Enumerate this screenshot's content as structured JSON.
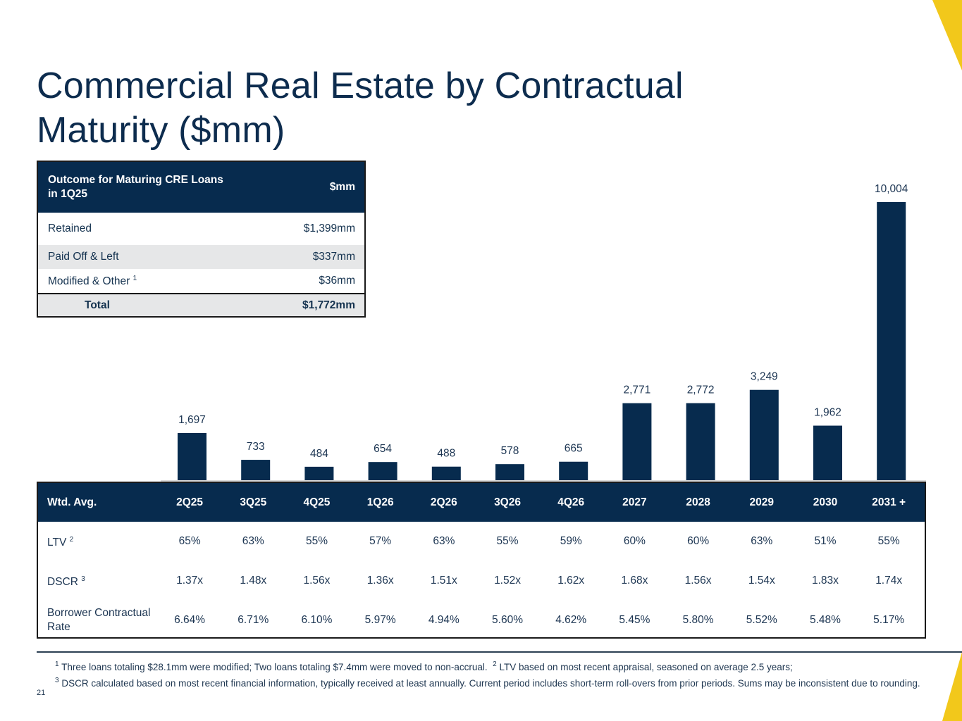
{
  "title": "Commercial Real Estate by Contractual Maturity ($mm)",
  "colors": {
    "navy": "#072b4e",
    "accent_yellow": "#f2c81b",
    "row_shade": "#e6e7e8"
  },
  "outcome_table": {
    "header_label": "Outcome for Maturing CRE Loans in 1Q25",
    "header_unit": "$mm",
    "rows": [
      {
        "label": "Retained",
        "sup": "",
        "value": "$1,399mm"
      },
      {
        "label": "Paid Off & Left",
        "sup": "",
        "value": "$337mm"
      },
      {
        "label": "Modified & Other",
        "sup": "1",
        "value": "$36mm"
      }
    ],
    "total": {
      "label": "Total",
      "value": "$1,772mm"
    }
  },
  "chart_data": {
    "type": "bar",
    "title": "Commercial Real Estate by Contractual Maturity ($mm)",
    "xlabel": "",
    "ylabel": "$mm",
    "categories": [
      "2Q25",
      "3Q25",
      "4Q25",
      "1Q26",
      "2Q26",
      "3Q26",
      "4Q26",
      "2027",
      "2028",
      "2029",
      "2030",
      "2031 +"
    ],
    "values": [
      1697,
      733,
      484,
      654,
      488,
      578,
      665,
      2771,
      2772,
      3249,
      1962,
      10004
    ],
    "data_labels": [
      "1,697",
      "733",
      "484",
      "654",
      "488",
      "578",
      "665",
      "2,771",
      "2,772",
      "3,249",
      "1,962",
      "10,004"
    ],
    "ylim": [
      0,
      10004
    ],
    "grid": false,
    "legend": "none",
    "color": "#072b4e"
  },
  "metrics_table": {
    "header_label": "Wtd. Avg.",
    "columns": [
      "2Q25",
      "3Q25",
      "4Q25",
      "1Q26",
      "2Q26",
      "3Q26",
      "4Q26",
      "2027",
      "2028",
      "2029",
      "2030",
      "2031 +"
    ],
    "rows": [
      {
        "label": "LTV",
        "sup": "2",
        "values": [
          "65%",
          "63%",
          "55%",
          "57%",
          "63%",
          "55%",
          "59%",
          "60%",
          "60%",
          "63%",
          "51%",
          "55%"
        ]
      },
      {
        "label": "DSCR",
        "sup": "3",
        "values": [
          "1.37x",
          "1.48x",
          "1.56x",
          "1.36x",
          "1.51x",
          "1.52x",
          "1.62x",
          "1.68x",
          "1.56x",
          "1.54x",
          "1.83x",
          "1.74x"
        ]
      },
      {
        "label": "Borrower Contractual Rate",
        "sup": "",
        "values": [
          "6.64%",
          "6.71%",
          "6.10%",
          "5.97%",
          "4.94%",
          "5.60%",
          "4.62%",
          "5.45%",
          "5.80%",
          "5.52%",
          "5.48%",
          "5.17%"
        ]
      }
    ]
  },
  "footnotes": {
    "n1_mark": "1",
    "n1": "Three loans totaling $28.1mm were modified; Two loans totaling $7.4mm were moved to non-accrual.",
    "n2_mark": "2",
    "n2": "LTV based on most recent appraisal, seasoned on average 2.5 years;",
    "n3_mark": "3",
    "n3": "DSCR calculated based on most recent financial information, typically received at least annually. Current period includes short-term roll-overs from prior periods. Sums may be inconsistent due to rounding."
  },
  "page_number": "21"
}
